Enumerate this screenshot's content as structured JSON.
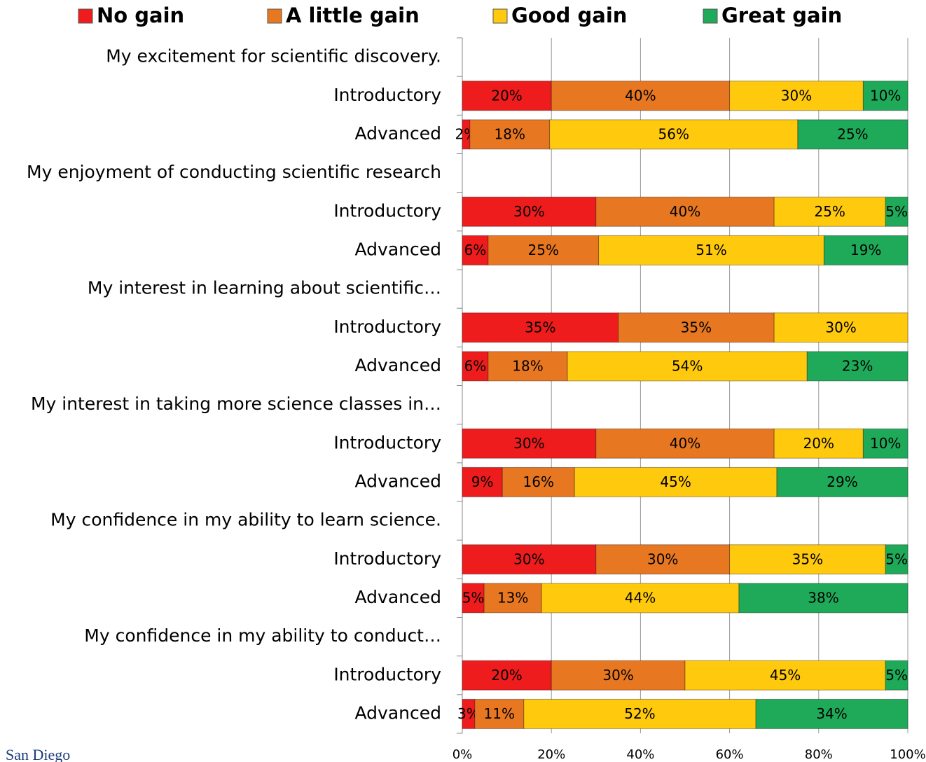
{
  "chart_data": {
    "type": "stacked_barh",
    "categories": [
      "My excitement for scientific discovery.",
      "Introductory",
      "Advanced",
      "My enjoyment of conducting scientific research",
      "Introductory",
      "Advanced",
      "My interest in learning about scientific…",
      "Introductory",
      "Advanced",
      "My interest in taking more science classes in…",
      "Introductory",
      "Advanced",
      "My confidence in my ability to learn science.",
      "Introductory",
      "Advanced",
      "My confidence in my ability to conduct…",
      "Introductory",
      "Advanced"
    ],
    "series": [
      {
        "name": "No gain",
        "color": "#ee1c1c",
        "values": [
          null,
          20,
          1.7,
          null,
          30,
          5.8,
          null,
          35,
          5.8,
          null,
          30,
          9.0,
          null,
          30,
          4.9,
          null,
          20,
          2.8
        ],
        "value_labels": [
          null,
          "20%",
          "2%",
          null,
          "30%",
          "6%",
          null,
          "35%",
          "6%",
          null,
          "30%",
          "9%",
          null,
          "30%",
          "5%",
          null,
          "20%",
          "3%"
        ]
      },
      {
        "name": "A little gain",
        "color": "#e87722",
        "values": [
          null,
          40,
          17.9,
          null,
          40,
          24.8,
          null,
          35,
          17.8,
          null,
          40,
          16.2,
          null,
          30,
          12.9,
          null,
          30,
          11.0
        ],
        "value_labels": [
          null,
          "40%",
          "18%",
          null,
          "40%",
          "25%",
          null,
          "35%",
          "18%",
          null,
          "40%",
          "16%",
          null,
          "30%",
          "13%",
          null,
          "30%",
          "11%"
        ]
      },
      {
        "name": "Good gain",
        "color": "#ffc90e",
        "values": [
          null,
          30,
          55.7,
          null,
          25,
          50.6,
          null,
          30,
          53.8,
          null,
          20,
          45.4,
          null,
          35,
          44.3,
          null,
          45,
          52.1
        ],
        "value_labels": [
          null,
          "30%",
          "56%",
          null,
          "25%",
          "51%",
          null,
          "30%",
          "54%",
          null,
          "20%",
          "45%",
          null,
          "35%",
          "44%",
          null,
          "45%",
          "52%"
        ]
      },
      {
        "name": "Great gain",
        "color": "#1faa59",
        "values": [
          null,
          10,
          24.7,
          null,
          5,
          18.8,
          null,
          0,
          22.6,
          null,
          10,
          29.4,
          null,
          5,
          37.9,
          null,
          5,
          34.1
        ],
        "value_labels": [
          null,
          "10%",
          "25%",
          null,
          "5%",
          "19%",
          null,
          null,
          "23%",
          null,
          "10%",
          "29%",
          null,
          "5%",
          "38%",
          null,
          "5%",
          "34%"
        ]
      }
    ],
    "xlim": [
      0,
      100
    ],
    "xticks": [
      {
        "value": 0,
        "label": "0%"
      },
      {
        "value": 20,
        "label": "20%"
      },
      {
        "value": 40,
        "label": "40%"
      },
      {
        "value": 60,
        "label": "60%"
      },
      {
        "value": 80,
        "label": "80%"
      },
      {
        "value": 100,
        "label": "100%"
      }
    ],
    "grid": true,
    "legend": "top",
    "logo": "San Diego"
  }
}
